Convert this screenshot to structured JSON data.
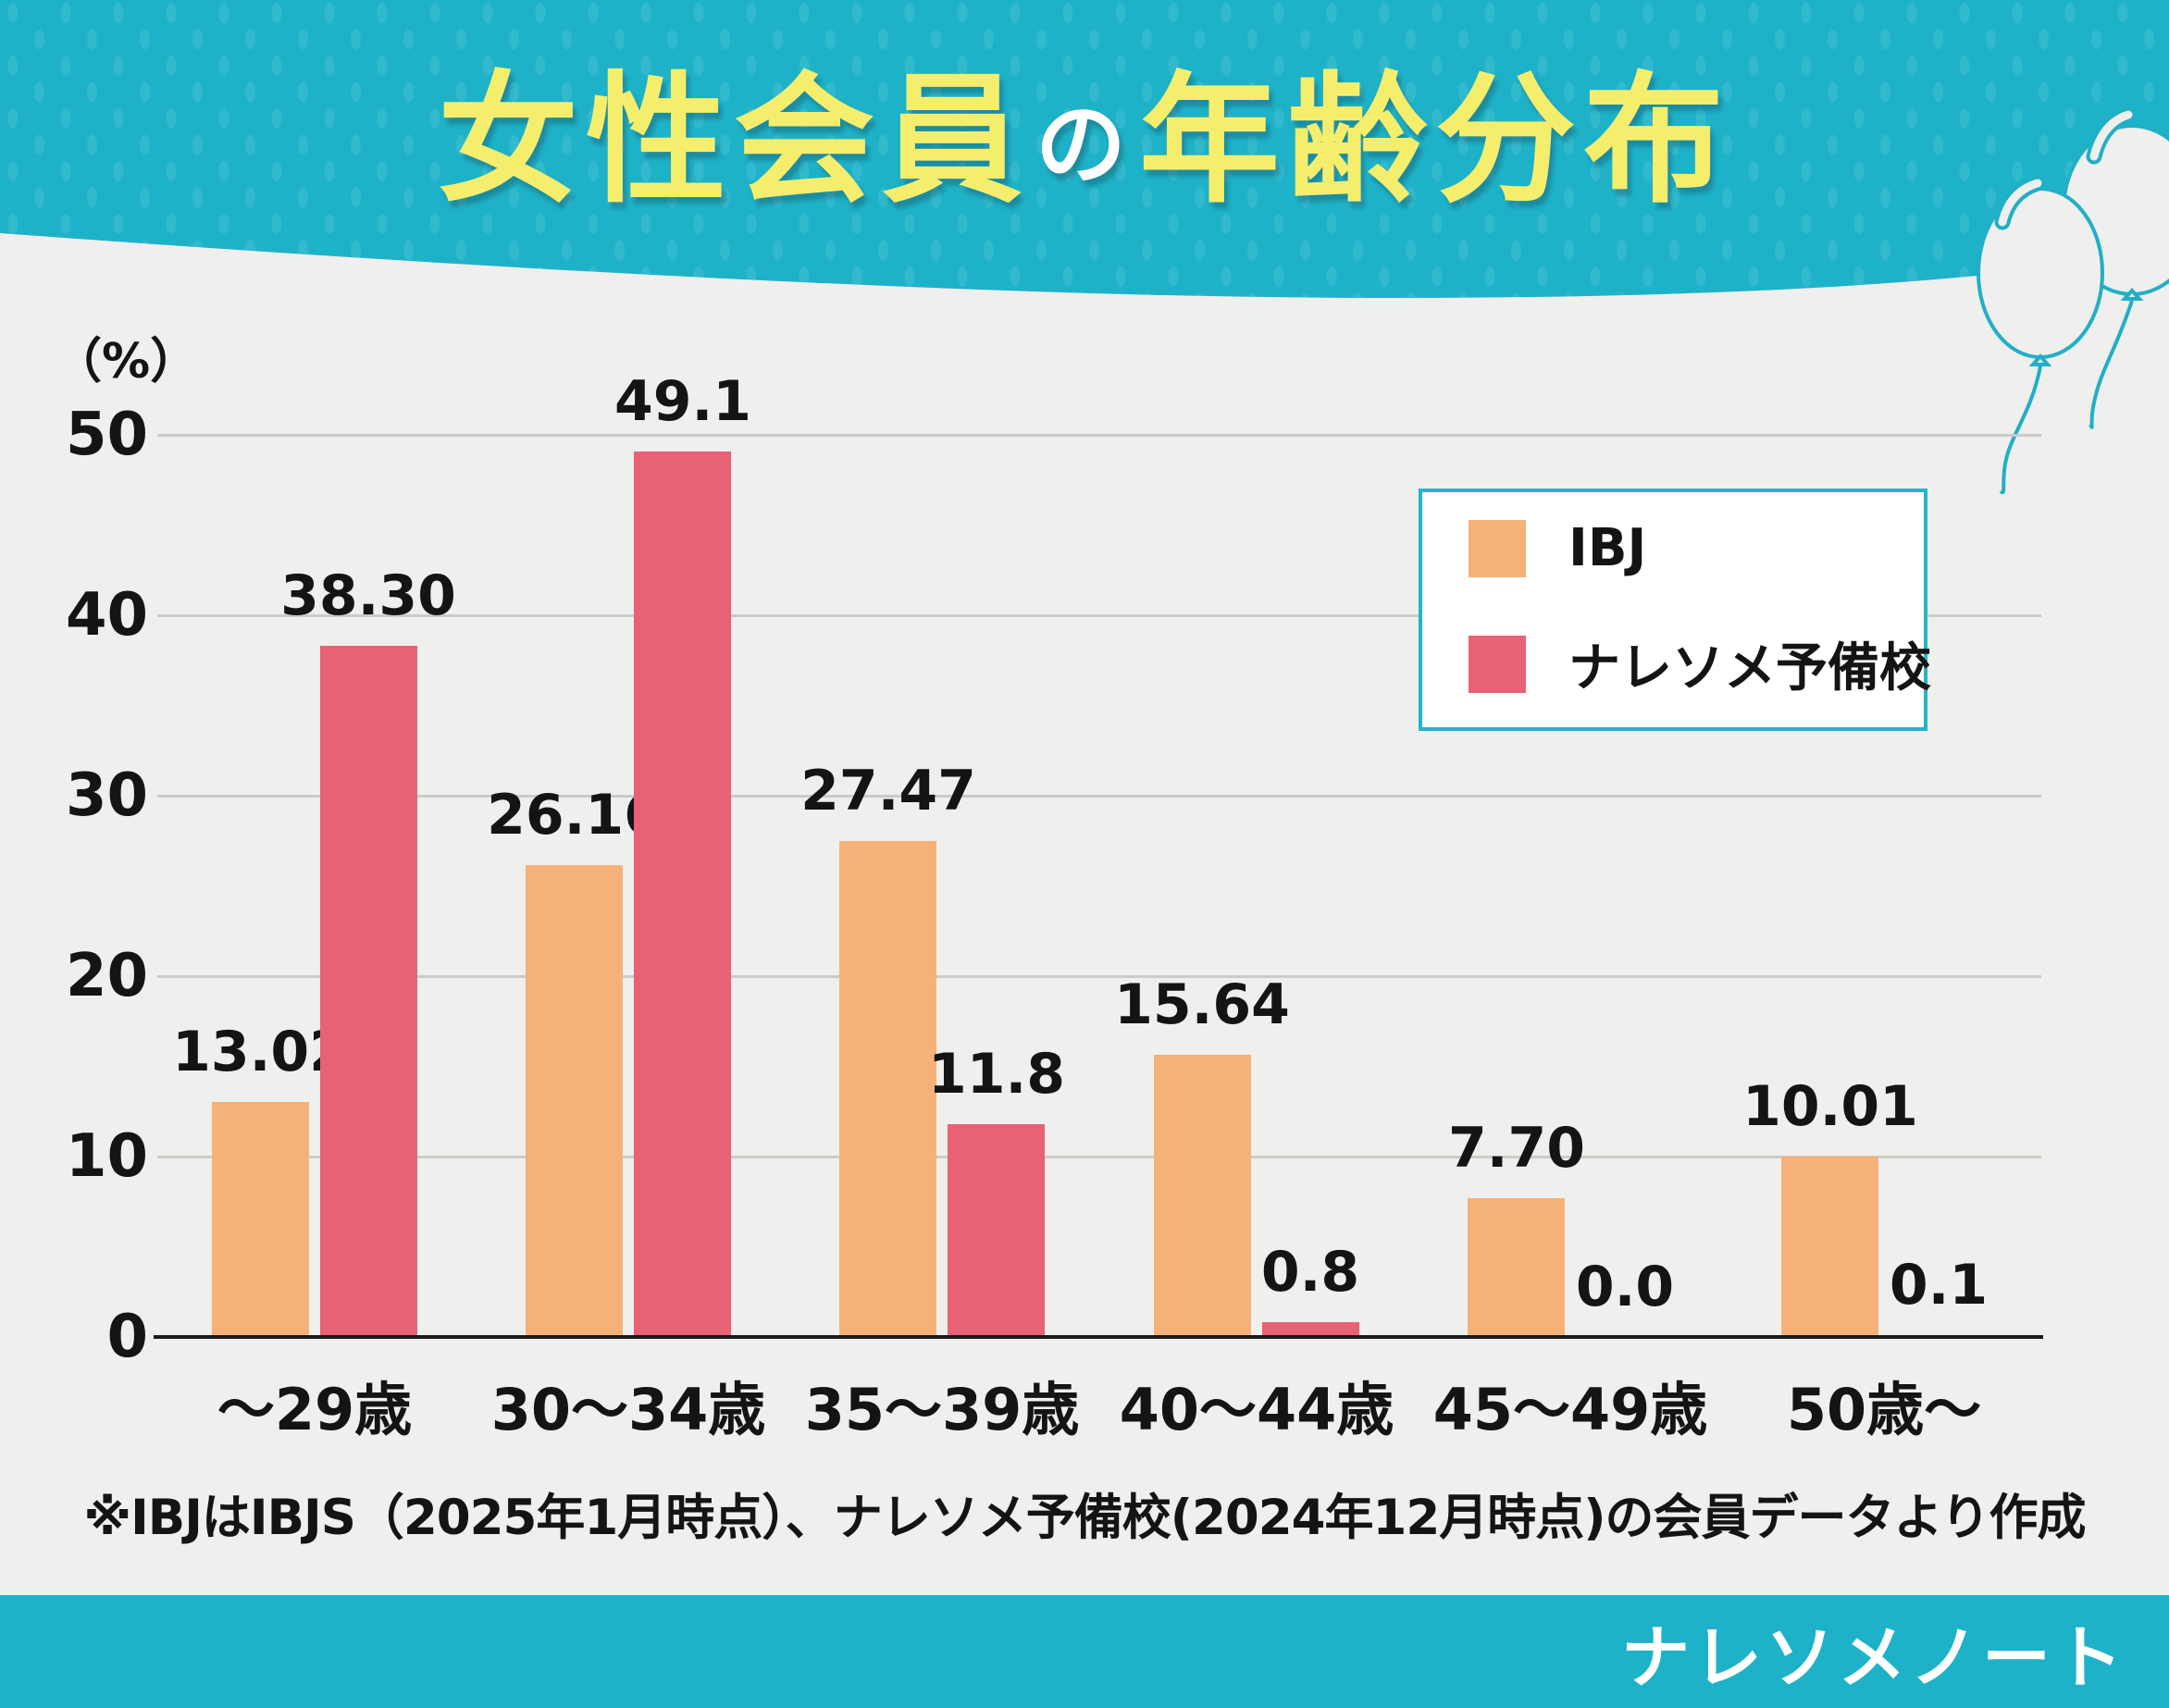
{
  "header": {
    "title_main_1": "女性会員",
    "title_particle": "の",
    "title_main_2": "年齢分布"
  },
  "chart": {
    "y_unit": "（%）"
  },
  "legend": {
    "items": [
      {
        "label": "IBJ",
        "color": "#F6B178"
      },
      {
        "label": "ナレソメ予備校",
        "color": "#E96174"
      }
    ]
  },
  "chart_data": {
    "type": "bar",
    "title": "女性会員の年齢分布",
    "ylabel": "（%）",
    "ylim": [
      0,
      50
    ],
    "yticks": [
      0,
      10,
      20,
      30,
      40,
      50
    ],
    "grid": true,
    "legend_position": "top-right",
    "categories": [
      "～29歳",
      "30～34歳",
      "35～39歳",
      "40～44歳",
      "45～49歳",
      "50歳～"
    ],
    "series": [
      {
        "name": "IBJ",
        "color": "#F6B178",
        "values": [
          13.02,
          26.16,
          27.47,
          15.64,
          7.7,
          10.01
        ],
        "labels": [
          "13.02",
          "26.16",
          "27.47",
          "15.64",
          "7.70",
          "10.01"
        ]
      },
      {
        "name": "ナレソメ予備校",
        "color": "#E96174",
        "values": [
          38.3,
          49.1,
          11.8,
          0.8,
          0.0,
          0.1
        ],
        "labels": [
          "38.30",
          "49.1",
          "11.8",
          "0.8",
          "0.0",
          "0.1"
        ]
      }
    ]
  },
  "footnote": "※IBJはIBJS（2025年1月時点）、ナレソメ予備校(2024年12月時点)の会員データより作成",
  "footer": {
    "logo_text": "ナレソメノート"
  },
  "colors": {
    "teal": "#1EB2C8",
    "title_yellow": "#F5EE6D",
    "background": "#EFEFEE",
    "ibj_orange": "#F6B178",
    "naresome_pink": "#E96174",
    "grid": "#CBCBC9",
    "axis": "#1A1A1A",
    "text": "#141414"
  }
}
